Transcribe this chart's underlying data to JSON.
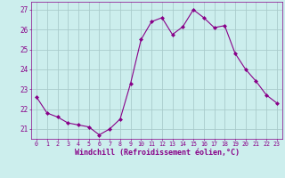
{
  "x": [
    0,
    1,
    2,
    3,
    4,
    5,
    6,
    7,
    8,
    9,
    10,
    11,
    12,
    13,
    14,
    15,
    16,
    17,
    18,
    19,
    20,
    21,
    22,
    23
  ],
  "y": [
    22.6,
    21.8,
    21.6,
    21.3,
    21.2,
    21.1,
    20.7,
    21.0,
    21.5,
    23.3,
    25.5,
    26.4,
    26.6,
    25.75,
    26.15,
    27.0,
    26.6,
    26.1,
    26.2,
    24.8,
    24.0,
    23.4,
    22.7,
    22.3
  ],
  "line_color": "#880088",
  "marker": "D",
  "marker_size": 2,
  "bg_color": "#cceeed",
  "grid_color": "#aacccc",
  "xlabel": "Windchill (Refroidissement éolien,°C)",
  "xlabel_color": "#880088",
  "tick_color": "#880088",
  "ylim": [
    20.5,
    27.4
  ],
  "yticks": [
    21,
    22,
    23,
    24,
    25,
    26,
    27
  ],
  "xticks": [
    0,
    1,
    2,
    3,
    4,
    5,
    6,
    7,
    8,
    9,
    10,
    11,
    12,
    13,
    14,
    15,
    16,
    17,
    18,
    19,
    20,
    21,
    22,
    23
  ],
  "xlim": [
    -0.5,
    23.5
  ]
}
